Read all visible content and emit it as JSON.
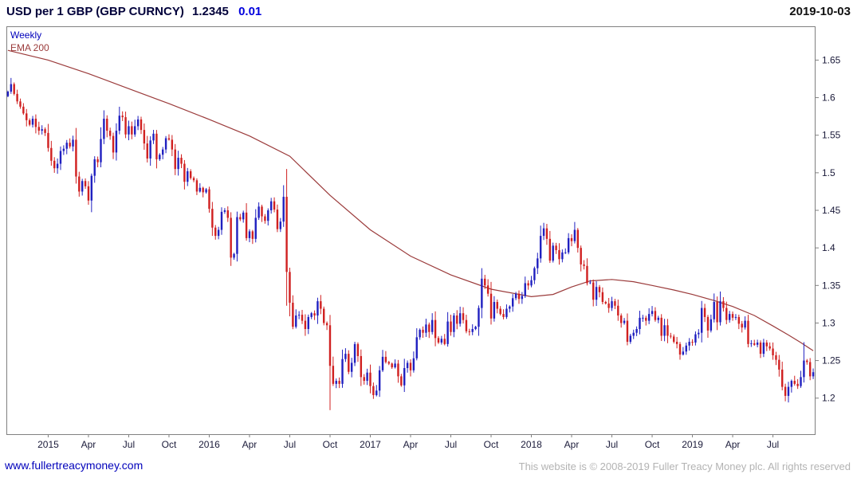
{
  "header": {
    "title": "USD per 1 GBP (GBP CURNCY)",
    "price": "1.2345",
    "change": "0.01",
    "date": "2019-10-03"
  },
  "chart_labels": {
    "timeframe": "Weekly",
    "overlay": "EMA 200"
  },
  "footer": {
    "site_link": "www.fullertreacymoney.com",
    "copyright": "This website is © 2008-2019 Fuller Treacy Money plc. All rights reserved"
  },
  "colors": {
    "up_candle": "#2020c0",
    "down_candle": "#d02020",
    "ema_line": "#9b3b3b",
    "axis_text": "#1b1b3a",
    "border": "#808080",
    "link": "#0000bb",
    "copyright_text": "#b3b3b3"
  },
  "chart_data": {
    "type": "candlestick",
    "title": "USD per 1 GBP (GBP CURNCY)",
    "timeframe": "weekly",
    "last_price": 1.2345,
    "change": 0.01,
    "as_of": "2019-10-03",
    "ylabel": "",
    "xlabel": "",
    "ylim": [
      1.152,
      1.695
    ],
    "y_ticks": [
      1.2,
      1.25,
      1.3,
      1.35,
      1.4,
      1.45,
      1.5,
      1.55,
      1.6,
      1.65
    ],
    "x_ticks": [
      {
        "index": 13,
        "label": "2015"
      },
      {
        "index": 26,
        "label": "Apr"
      },
      {
        "index": 39,
        "label": "Jul"
      },
      {
        "index": 52,
        "label": "Oct"
      },
      {
        "index": 65,
        "label": "2016"
      },
      {
        "index": 78,
        "label": "Apr"
      },
      {
        "index": 91,
        "label": "Jul"
      },
      {
        "index": 104,
        "label": "Oct"
      },
      {
        "index": 117,
        "label": "2017"
      },
      {
        "index": 130,
        "label": "Apr"
      },
      {
        "index": 143,
        "label": "Jul"
      },
      {
        "index": 156,
        "label": "Oct"
      },
      {
        "index": 169,
        "label": "2018"
      },
      {
        "index": 182,
        "label": "Apr"
      },
      {
        "index": 195,
        "label": "Jul"
      },
      {
        "index": 208,
        "label": "Oct"
      },
      {
        "index": 221,
        "label": "2019"
      },
      {
        "index": 234,
        "label": "Apr"
      },
      {
        "index": 247,
        "label": "Jul"
      }
    ],
    "first_open": 1.602,
    "closes": [
      1.608,
      1.618,
      1.605,
      1.595,
      1.588,
      1.579,
      1.57,
      1.564,
      1.572,
      1.561,
      1.556,
      1.558,
      1.553,
      1.533,
      1.516,
      1.506,
      1.512,
      1.529,
      1.532,
      1.54,
      1.535,
      1.544,
      1.495,
      1.475,
      1.489,
      1.482,
      1.463,
      1.496,
      1.518,
      1.514,
      1.545,
      1.572,
      1.556,
      1.549,
      1.527,
      1.556,
      1.576,
      1.574,
      1.551,
      1.562,
      1.551,
      1.562,
      1.571,
      1.557,
      1.539,
      1.519,
      1.543,
      1.552,
      1.518,
      1.524,
      1.531,
      1.546,
      1.544,
      1.531,
      1.505,
      1.52,
      1.512,
      1.488,
      1.502,
      1.493,
      1.49,
      1.475,
      1.48,
      1.474,
      1.478,
      1.452,
      1.427,
      1.416,
      1.424,
      1.448,
      1.45,
      1.44,
      1.387,
      1.392,
      1.441,
      1.438,
      1.447,
      1.413,
      1.422,
      1.412,
      1.44,
      1.455,
      1.442,
      1.436,
      1.45,
      1.462,
      1.451,
      1.425,
      1.435,
      1.468,
      1.368,
      1.327,
      1.295,
      1.31,
      1.311,
      1.303,
      1.292,
      1.308,
      1.313,
      1.31,
      1.329,
      1.319,
      1.3,
      1.297,
      1.243,
      1.219,
      1.223,
      1.219,
      1.252,
      1.259,
      1.235,
      1.247,
      1.272,
      1.256,
      1.228,
      1.223,
      1.234,
      1.216,
      1.204,
      1.21,
      1.237,
      1.255,
      1.248,
      1.246,
      1.241,
      1.246,
      1.229,
      1.217,
      1.24,
      1.247,
      1.237,
      1.253,
      1.281,
      1.291,
      1.287,
      1.298,
      1.288,
      1.304,
      1.28,
      1.274,
      1.279,
      1.272,
      1.302,
      1.288,
      1.31,
      1.299,
      1.313,
      1.304,
      1.289,
      1.288,
      1.292,
      1.295,
      1.32,
      1.359,
      1.35,
      1.339,
      1.306,
      1.328,
      1.319,
      1.312,
      1.308,
      1.319,
      1.322,
      1.333,
      1.339,
      1.332,
      1.336,
      1.353,
      1.35,
      1.357,
      1.373,
      1.386,
      1.416,
      1.426,
      1.412,
      1.383,
      1.403,
      1.397,
      1.385,
      1.394,
      1.394,
      1.413,
      1.409,
      1.424,
      1.4,
      1.378,
      1.376,
      1.353,
      1.354,
      1.331,
      1.348,
      1.341,
      1.328,
      1.326,
      1.32,
      1.329,
      1.323,
      1.31,
      1.3,
      1.303,
      1.275,
      1.283,
      1.287,
      1.292,
      1.307,
      1.307,
      1.303,
      1.312,
      1.316,
      1.304,
      1.307,
      1.283,
      1.297,
      1.283,
      1.282,
      1.275,
      1.272,
      1.258,
      1.262,
      1.27,
      1.275,
      1.274,
      1.285,
      1.287,
      1.32,
      1.308,
      1.29,
      1.305,
      1.328,
      1.301,
      1.329,
      1.32,
      1.304,
      1.312,
      1.307,
      1.308,
      1.299,
      1.294,
      1.303,
      1.272,
      1.273,
      1.271,
      1.274,
      1.259,
      1.274,
      1.269,
      1.266,
      1.257,
      1.251,
      1.238,
      1.215,
      1.203,
      1.215,
      1.223,
      1.219,
      1.216,
      1.228,
      1.25,
      1.248,
      1.229,
      1.2345
    ],
    "wick_overrides": {
      "90": {
        "high": 1.505,
        "low": 1.323
      },
      "104": {
        "low": 1.184
      },
      "118": {
        "low": 1.199
      },
      "183": {
        "high": 1.4345
      },
      "251": {
        "low": 1.1958
      },
      "257": {
        "high": 1.2745
      }
    },
    "ema200": {
      "label": "EMA 200",
      "anchors_index": [
        0,
        13,
        26,
        39,
        52,
        65,
        78,
        91,
        104,
        117,
        130,
        143,
        156,
        169,
        176,
        182,
        188,
        195,
        202,
        208,
        215,
        221,
        228,
        234,
        241,
        247,
        252,
        256,
        260
      ],
      "anchors_value": [
        1.663,
        1.65,
        1.632,
        1.612,
        1.592,
        1.571,
        1.549,
        1.522,
        1.47,
        1.424,
        1.389,
        1.364,
        1.345,
        1.335,
        1.338,
        1.348,
        1.356,
        1.358,
        1.355,
        1.35,
        1.344,
        1.338,
        1.33,
        1.322,
        1.31,
        1.296,
        1.284,
        1.274,
        1.263
      ]
    }
  }
}
